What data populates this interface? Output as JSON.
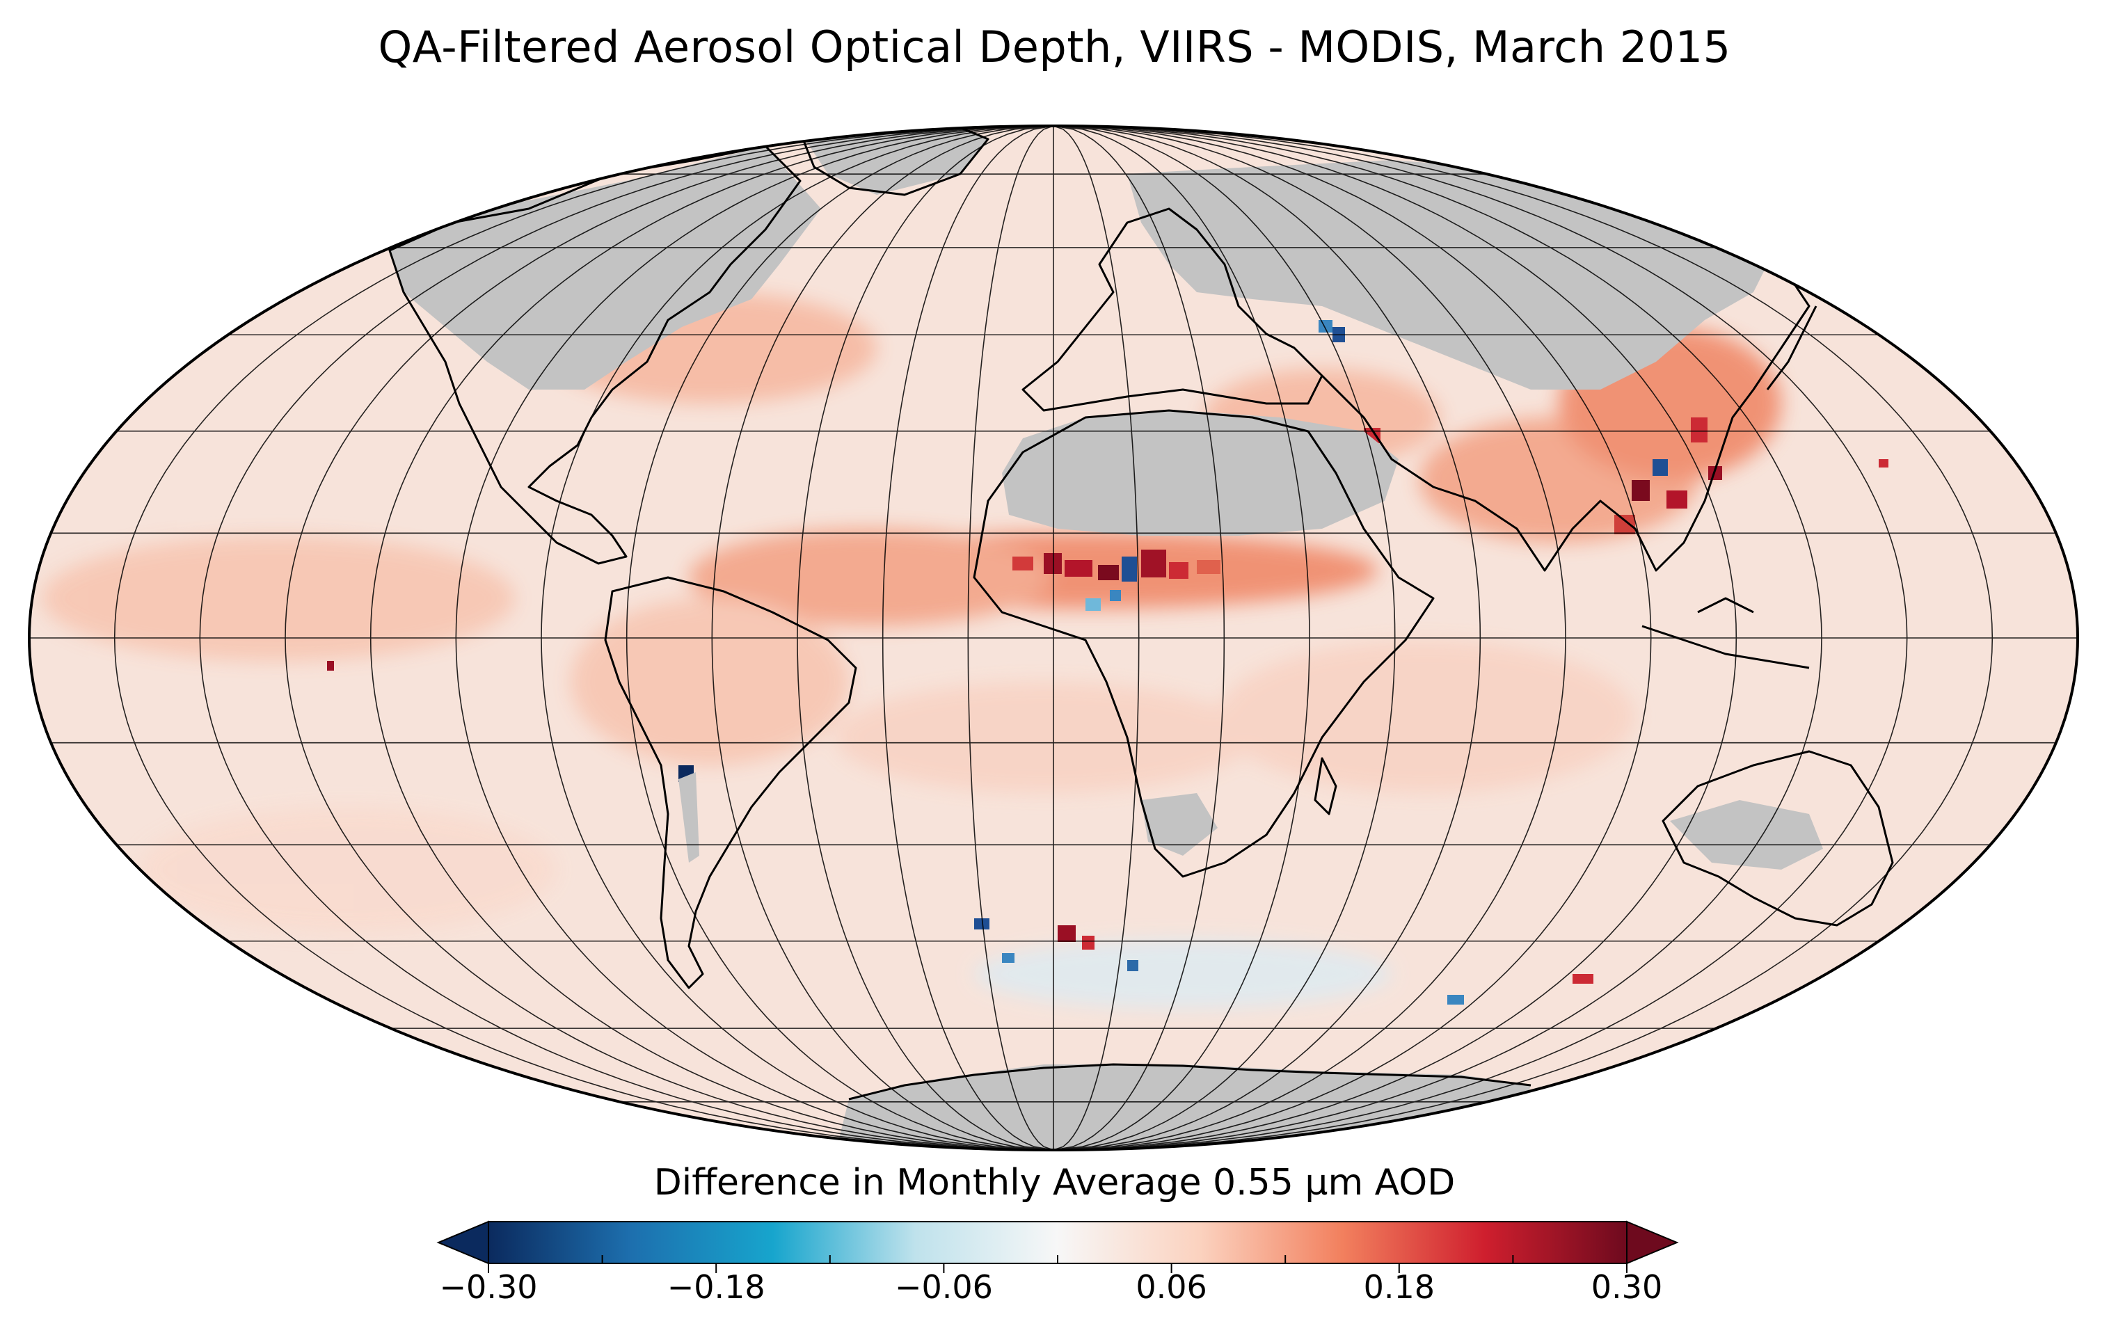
{
  "title": "QA-Filtered Aerosol Optical Depth, VIIRS - MODIS, March 2015",
  "map": {
    "projection": "mollweide",
    "central_longitude": 0,
    "graticule_lon_step_deg": 15,
    "graticule_lat_step_deg": 15,
    "ocean_base_color": "#f7e1d7",
    "no_data_color": "#c3c3c3",
    "coastline_color": "#000000"
  },
  "colorbar": {
    "label": "Difference in Monthly Average 0.55 μm AOD",
    "vmin": -0.3,
    "vmax": 0.3,
    "extend": "both",
    "colormap": "RdBu_r",
    "ticks": [
      "−0.30",
      "−0.18",
      "−0.06",
      "0.06",
      "0.18",
      "0.30"
    ],
    "tick_values": [
      -0.3,
      -0.18,
      -0.06,
      0.06,
      0.18,
      0.3
    ],
    "colors": [
      "#0b2a5e",
      "#1d6fae",
      "#17a5cd",
      "#bfe2ec",
      "#f7f7f7",
      "#fbd2bf",
      "#f2805e",
      "#cf1f2e",
      "#6e0a1e"
    ]
  }
}
